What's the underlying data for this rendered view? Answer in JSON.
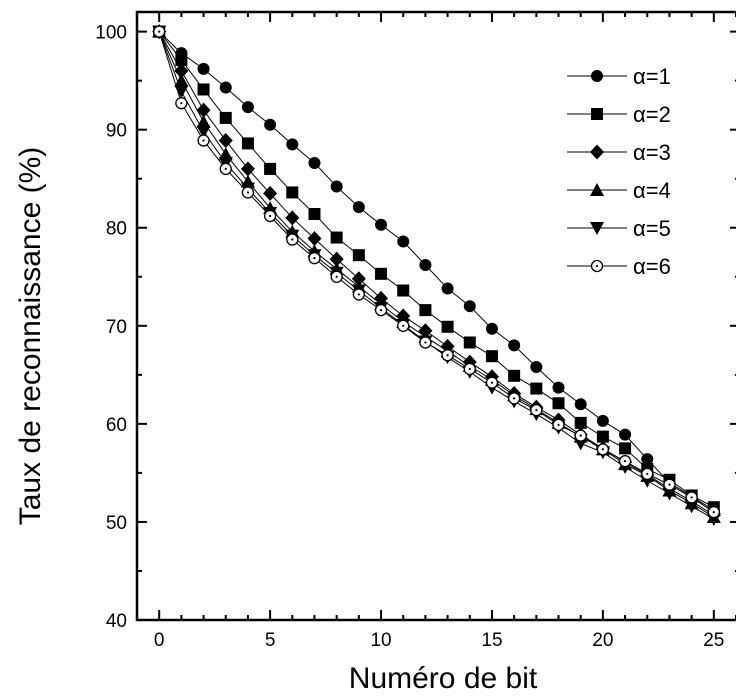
{
  "chart_data": {
    "type": "line",
    "xlabel": "Numéro de bit",
    "ylabel": "Taux de reconnaissance (%)",
    "xlim": [
      -1,
      26
    ],
    "ylim": [
      40,
      102
    ],
    "xticks": [
      0,
      5,
      10,
      15,
      20,
      25
    ],
    "yticks": [
      40,
      50,
      60,
      70,
      80,
      90,
      100
    ],
    "grid": false,
    "legend_position": "top-right",
    "x": [
      0,
      1,
      2,
      3,
      4,
      5,
      6,
      7,
      8,
      9,
      10,
      11,
      12,
      13,
      14,
      15,
      16,
      17,
      18,
      19,
      20,
      21,
      22,
      23,
      24,
      25
    ],
    "series": [
      {
        "name": "α=1",
        "marker": "circle-filled",
        "values": [
          100,
          97.8,
          96.2,
          94.3,
          92.3,
          90.5,
          88.5,
          86.6,
          84.2,
          82.1,
          80.3,
          78.6,
          76.2,
          73.8,
          72.0,
          69.7,
          68.0,
          65.8,
          63.7,
          62.0,
          60.3,
          58.9,
          56.4,
          54.0,
          52.6,
          51.2
        ]
      },
      {
        "name": "α=2",
        "marker": "square-filled",
        "values": [
          100,
          97.1,
          94.1,
          91.2,
          88.6,
          86.0,
          83.6,
          81.4,
          79.0,
          77.2,
          75.3,
          73.6,
          71.6,
          69.9,
          68.3,
          66.9,
          64.9,
          63.6,
          62.1,
          60.1,
          58.7,
          57.5,
          55.4,
          54.3,
          52.7,
          51.5
        ]
      },
      {
        "name": "α=3",
        "marker": "diamond-filled",
        "values": [
          100,
          96.0,
          92.0,
          88.9,
          86.0,
          83.5,
          81.0,
          78.9,
          76.8,
          74.8,
          72.8,
          71.0,
          69.5,
          67.9,
          66.3,
          64.8,
          63.1,
          61.7,
          60.4,
          58.9,
          57.5,
          56.1,
          54.8,
          53.4,
          52.1,
          50.7
        ]
      },
      {
        "name": "α=4",
        "marker": "triangle-up-filled",
        "values": [
          100,
          95.0,
          90.8,
          87.5,
          84.7,
          82.0,
          79.6,
          77.6,
          75.8,
          74.0,
          72.2,
          70.4,
          68.9,
          67.4,
          65.9,
          64.5,
          62.9,
          61.5,
          60.1,
          58.7,
          57.4,
          55.9,
          54.7,
          53.2,
          51.9,
          50.5
        ]
      },
      {
        "name": "α=5",
        "marker": "triangle-down-filled",
        "values": [
          100,
          93.9,
          89.8,
          86.6,
          84.0,
          81.5,
          79.2,
          77.2,
          75.4,
          73.6,
          71.8,
          70.1,
          68.4,
          66.8,
          65.3,
          63.7,
          62.3,
          61.0,
          59.6,
          58.0,
          57.1,
          55.6,
          54.2,
          52.9,
          51.6,
          50.3
        ]
      },
      {
        "name": "α=6",
        "marker": "circle-open-dot",
        "values": [
          100,
          92.7,
          88.9,
          86.0,
          83.6,
          81.2,
          78.8,
          76.9,
          75.0,
          73.2,
          71.6,
          70.0,
          68.3,
          67.0,
          65.6,
          64.2,
          62.6,
          61.4,
          59.9,
          58.8,
          57.4,
          56.2,
          54.9,
          53.8,
          52.5,
          51.0
        ]
      }
    ]
  }
}
